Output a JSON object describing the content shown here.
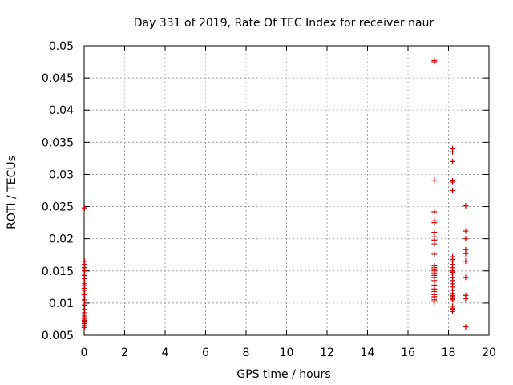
{
  "chart_data": {
    "type": "scatter",
    "title": "Day 331 of 2019, Rate Of TEC Index for receiver naur",
    "xlabel": "GPS time / hours",
    "ylabel": "ROTI / TECUs",
    "xlim": [
      0,
      20
    ],
    "ylim": [
      0.005,
      0.05
    ],
    "xticks": [
      0,
      2,
      4,
      6,
      8,
      10,
      12,
      14,
      16,
      18,
      20
    ],
    "yticks": [
      0.005,
      0.01,
      0.015,
      0.02,
      0.025,
      0.03,
      0.035,
      0.04,
      0.045,
      0.05
    ],
    "ytick_labels": [
      "0.005",
      "0.01",
      "0.015",
      "0.02",
      "0.025",
      "0.03",
      "0.035",
      "0.04",
      "0.045",
      "0.05"
    ],
    "grid": true,
    "marker": "+",
    "color": "#cc0000",
    "series": [
      {
        "name": "ROTI",
        "points": [
          [
            0.02,
            0.0248
          ],
          [
            0.02,
            0.0165
          ],
          [
            0.02,
            0.016
          ],
          [
            0.02,
            0.0155
          ],
          [
            0.02,
            0.015
          ],
          [
            0.02,
            0.0143
          ],
          [
            0.02,
            0.0138
          ],
          [
            0.02,
            0.0133
          ],
          [
            0.02,
            0.013
          ],
          [
            0.02,
            0.0127
          ],
          [
            0.02,
            0.0123
          ],
          [
            0.02,
            0.012
          ],
          [
            0.02,
            0.0113
          ],
          [
            0.02,
            0.0105
          ],
          [
            0.02,
            0.0097
          ],
          [
            0.02,
            0.009
          ],
          [
            0.02,
            0.0085
          ],
          [
            0.02,
            0.008
          ],
          [
            0.02,
            0.0077
          ],
          [
            0.02,
            0.0075
          ],
          [
            0.02,
            0.0073
          ],
          [
            0.02,
            0.0072
          ],
          [
            0.02,
            0.007
          ],
          [
            0.02,
            0.0068
          ],
          [
            0.02,
            0.0065
          ],
          [
            0.02,
            0.0062
          ],
          [
            17.3,
            0.0477
          ],
          [
            17.3,
            0.0475
          ],
          [
            17.3,
            0.0291
          ],
          [
            17.3,
            0.0242
          ],
          [
            17.3,
            0.0228
          ],
          [
            17.3,
            0.0225
          ],
          [
            17.3,
            0.021
          ],
          [
            17.3,
            0.0203
          ],
          [
            17.3,
            0.0198
          ],
          [
            17.3,
            0.0192
          ],
          [
            17.3,
            0.0176
          ],
          [
            17.3,
            0.0158
          ],
          [
            17.3,
            0.0155
          ],
          [
            17.3,
            0.0152
          ],
          [
            17.3,
            0.015
          ],
          [
            17.3,
            0.0147
          ],
          [
            17.3,
            0.0143
          ],
          [
            17.3,
            0.014
          ],
          [
            17.3,
            0.0135
          ],
          [
            17.3,
            0.0128
          ],
          [
            17.3,
            0.0122
          ],
          [
            17.3,
            0.0118
          ],
          [
            17.3,
            0.0113
          ],
          [
            17.3,
            0.011
          ],
          [
            17.3,
            0.0108
          ],
          [
            17.3,
            0.0105
          ],
          [
            17.3,
            0.0102
          ],
          [
            18.2,
            0.034
          ],
          [
            18.2,
            0.0335
          ],
          [
            18.2,
            0.032
          ],
          [
            18.2,
            0.029
          ],
          [
            18.2,
            0.0288
          ],
          [
            18.2,
            0.0275
          ],
          [
            18.2,
            0.0172
          ],
          [
            18.2,
            0.0168
          ],
          [
            18.2,
            0.0165
          ],
          [
            18.2,
            0.016
          ],
          [
            18.2,
            0.0155
          ],
          [
            18.2,
            0.015
          ],
          [
            18.2,
            0.0148
          ],
          [
            18.2,
            0.0145
          ],
          [
            18.2,
            0.014
          ],
          [
            18.2,
            0.0135
          ],
          [
            18.2,
            0.013
          ],
          [
            18.2,
            0.0125
          ],
          [
            18.2,
            0.012
          ],
          [
            18.2,
            0.0115
          ],
          [
            18.2,
            0.0112
          ],
          [
            18.2,
            0.011
          ],
          [
            18.2,
            0.0107
          ],
          [
            18.2,
            0.0105
          ],
          [
            18.2,
            0.0095
          ],
          [
            18.2,
            0.0092
          ],
          [
            18.2,
            0.009
          ],
          [
            18.2,
            0.0087
          ],
          [
            18.85,
            0.0251
          ],
          [
            18.85,
            0.0212
          ],
          [
            18.85,
            0.02
          ],
          [
            18.85,
            0.0183
          ],
          [
            18.85,
            0.0177
          ],
          [
            18.85,
            0.0165
          ],
          [
            18.85,
            0.014
          ],
          [
            18.85,
            0.0112
          ],
          [
            18.85,
            0.0107
          ],
          [
            18.85,
            0.0063
          ]
        ]
      }
    ]
  }
}
